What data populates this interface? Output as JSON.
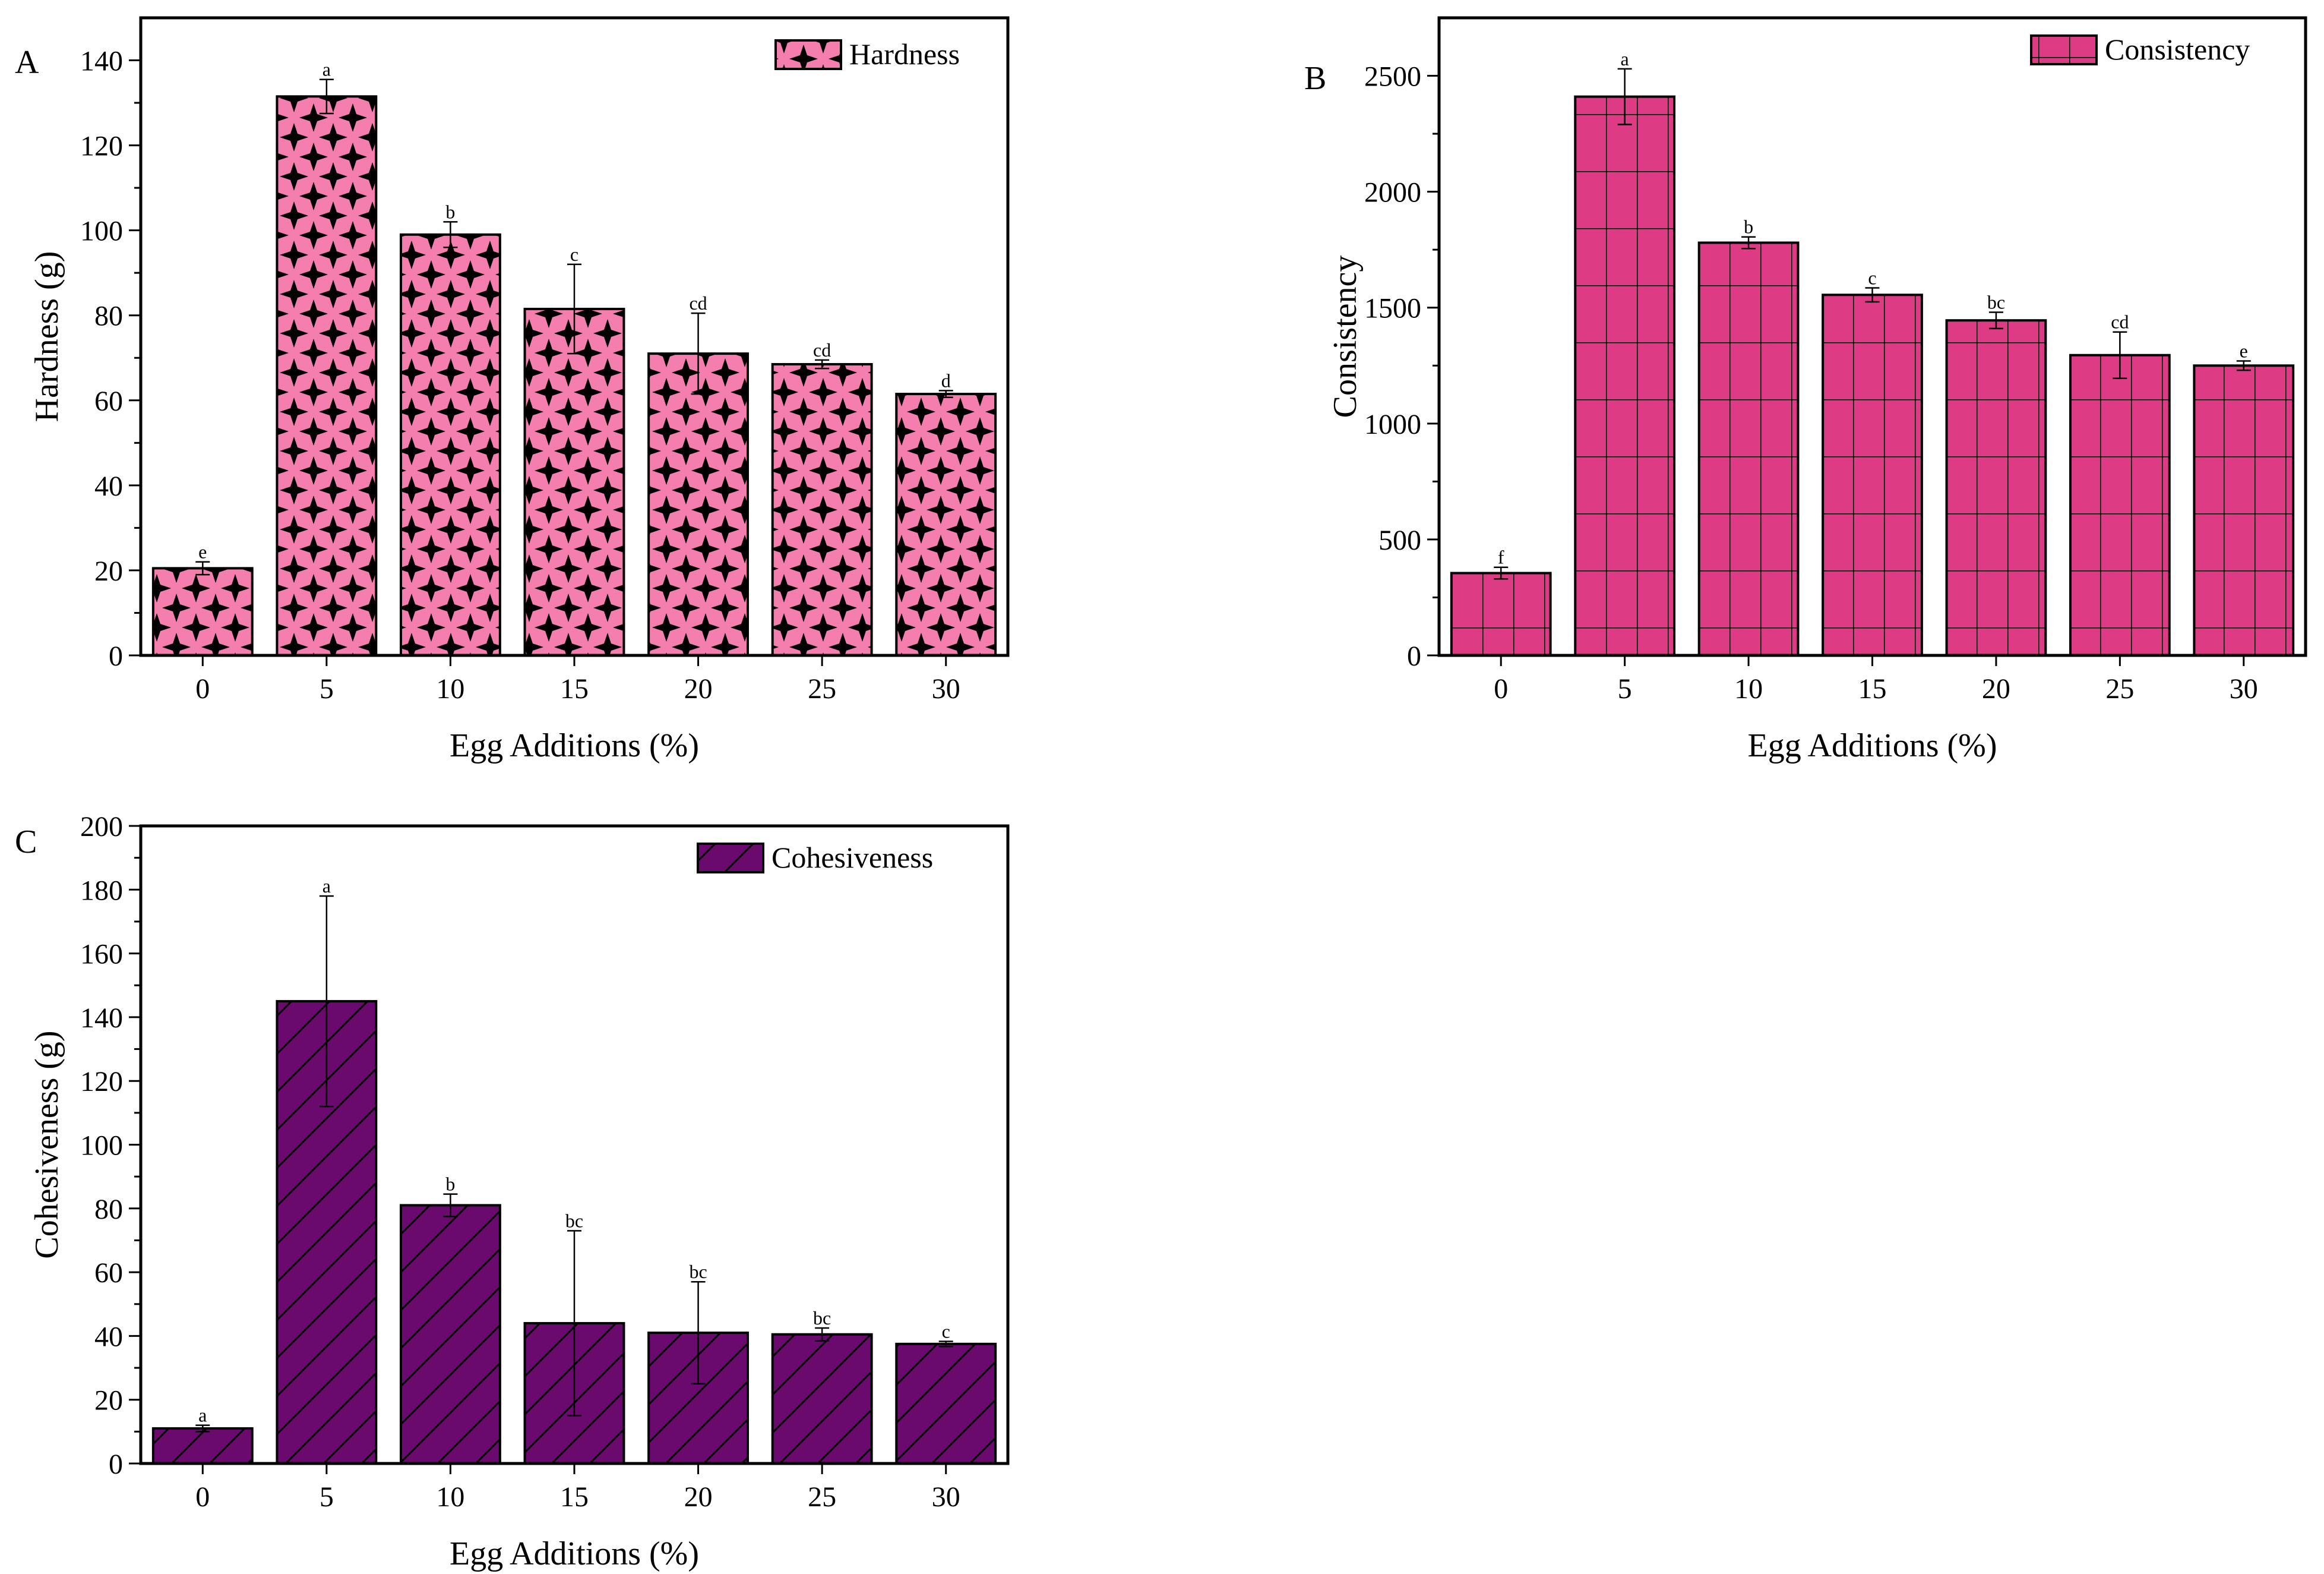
{
  "chart_data": [
    {
      "type": "bar",
      "panel_label": "A",
      "categories": [
        "0",
        "5",
        "10",
        "15",
        "20",
        "25",
        "30"
      ],
      "series": [
        {
          "name": "Hardness",
          "values": [
            20.5,
            131.5,
            99,
            81.5,
            71,
            68.5,
            61.5
          ],
          "errors": [
            1.5,
            4,
            3,
            10.5,
            9.5,
            1,
            0.8
          ],
          "significance": [
            "e",
            "a",
            "b",
            "c",
            "cd",
            "cd",
            "d"
          ]
        }
      ],
      "xlabel": "Egg Additions (%)",
      "ylabel": "Hardness (g)",
      "ylim": [
        0,
        150
      ],
      "yticks": [
        0,
        20,
        40,
        60,
        80,
        100,
        120,
        140
      ],
      "legend": "top-right",
      "grid": false,
      "color": "#f47fae",
      "pattern": "black-crosses"
    },
    {
      "type": "bar",
      "panel_label": "B",
      "categories": [
        "0",
        "5",
        "10",
        "15",
        "20",
        "25",
        "30"
      ],
      "series": [
        {
          "name": "Consistency",
          "values": [
            355,
            2410,
            1780,
            1555,
            1445,
            1295,
            1250
          ],
          "errors": [
            25,
            120,
            25,
            30,
            35,
            100,
            20
          ],
          "significance": [
            "f",
            "a",
            "b",
            "c",
            "bc",
            "cd",
            "e"
          ]
        }
      ],
      "xlabel": "Egg Additions (%)",
      "ylabel": "Consistency",
      "ylim": [
        0,
        2750
      ],
      "yticks": [
        0,
        500,
        1000,
        1500,
        2000,
        2500
      ],
      "legend": "top-right",
      "grid": false,
      "color": "#dd3b84",
      "pattern": "grid"
    },
    {
      "type": "bar",
      "panel_label": "C",
      "categories": [
        "0",
        "5",
        "10",
        "15",
        "20",
        "25",
        "30"
      ],
      "series": [
        {
          "name": "Cohesiveness",
          "values": [
            11,
            145,
            81,
            44,
            41,
            40.5,
            37.5
          ],
          "errors": [
            1,
            33,
            3.5,
            29,
            16,
            2,
            0.8
          ],
          "significance": [
            "a",
            "a",
            "b",
            "bc",
            "bc",
            "bc",
            "c"
          ]
        }
      ],
      "xlabel": "Egg Additions (%)",
      "ylabel": "Cohesiveness (g)",
      "ylim": [
        0,
        200
      ],
      "yticks": [
        0,
        20,
        40,
        60,
        80,
        100,
        120,
        140,
        160,
        180,
        200
      ],
      "legend": "top-right",
      "grid": false,
      "color": "#6a0a6e",
      "pattern": "diagonal-hatch"
    }
  ]
}
